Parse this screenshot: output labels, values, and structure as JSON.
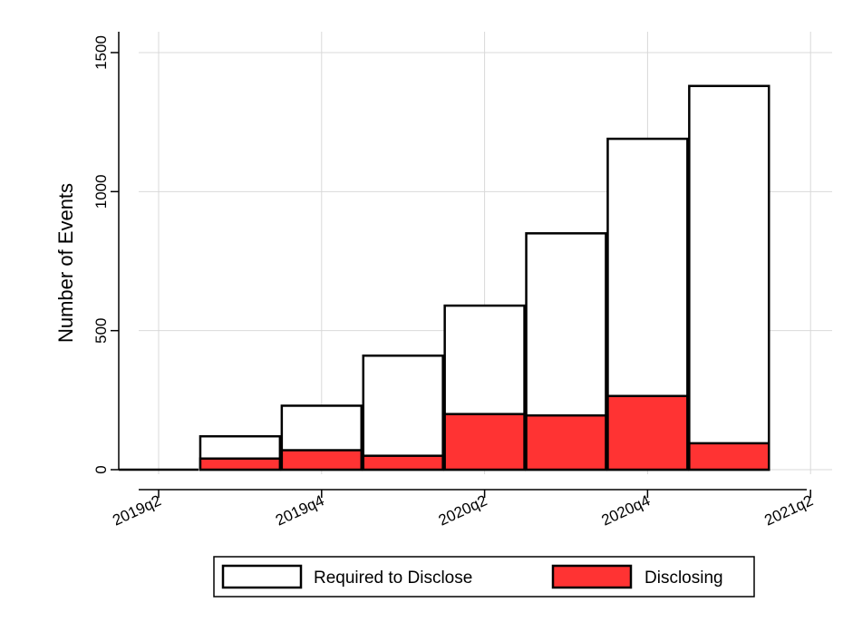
{
  "chart_data": {
    "type": "bar",
    "title": "",
    "xlabel": "",
    "ylabel": "Number of Events",
    "ylim": [
      0,
      1550
    ],
    "yticks": [
      0,
      500,
      1000,
      1500
    ],
    "xticks": [
      "2019q2",
      "2019q4",
      "2020q2",
      "2020q4",
      "2021q2"
    ],
    "grid": true,
    "legend_position": "bottom",
    "colors": {
      "required": "#ffffff",
      "required_border": "#000000",
      "disclosing": "#ff3333",
      "grid": "#d9d9d9"
    },
    "categories": [
      "2019q2",
      "2019q3",
      "2019q4",
      "2020q1",
      "2020q2",
      "2020q3",
      "2020q4",
      "2021q1"
    ],
    "series": [
      {
        "name": "Required to Disclose",
        "values": [
          0,
          120,
          230,
          410,
          590,
          850,
          1190,
          1380
        ]
      },
      {
        "name": "Disclosing",
        "values": [
          0,
          40,
          70,
          50,
          200,
          195,
          265,
          95
        ]
      }
    ]
  }
}
